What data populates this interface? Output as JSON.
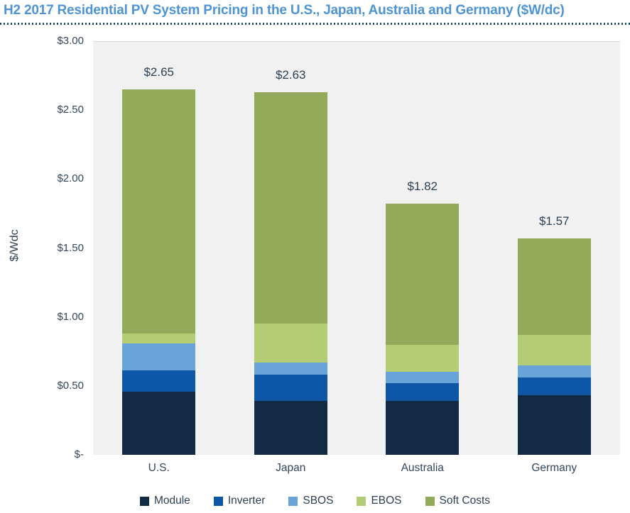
{
  "title": "H2 2017 Residential PV System Pricing in the U.S., Japan, Australia and Germany ($W/dc)",
  "colors": {
    "title_text": "#4E94D4",
    "divider_dots": "#1E4F63",
    "axis_text": "#33475C",
    "label_text": "#2E4154",
    "plot_background": "#F1F1F1",
    "top_gridline": "#DBDBDB",
    "page_background": "#FFFFFF"
  },
  "chart_data": {
    "type": "bar",
    "stacked": true,
    "title": "H2 2017 Residential PV System Pricing in the U.S., Japan, Australia and Germany ($W/dc)",
    "xlabel": "",
    "ylabel": "$/Wdc",
    "ylim": [
      0,
      3.0
    ],
    "grid": false,
    "legend_position": "bottom",
    "categories": [
      "U.S.",
      "Japan",
      "Australia",
      "Germany"
    ],
    "series": [
      {
        "name": "Module",
        "color": "#132A44",
        "values": [
          0.46,
          0.39,
          0.39,
          0.43
        ]
      },
      {
        "name": "Inverter",
        "color": "#0E57A6",
        "values": [
          0.15,
          0.19,
          0.13,
          0.13
        ]
      },
      {
        "name": "SBOS",
        "color": "#68A3D9",
        "values": [
          0.2,
          0.09,
          0.08,
          0.09
        ]
      },
      {
        "name": "EBOS",
        "color": "#B2CD73",
        "values": [
          0.07,
          0.28,
          0.2,
          0.22
        ]
      },
      {
        "name": "Soft Costs",
        "color": "#94AA5B",
        "values": [
          1.77,
          1.68,
          1.02,
          0.7
        ]
      }
    ],
    "totals": [
      2.65,
      2.63,
      1.82,
      1.57
    ],
    "total_labels": [
      "$2.65",
      "$2.63",
      "$1.82",
      "$1.57"
    ],
    "y_ticks": [
      {
        "value": 3.0,
        "label": "$3.00"
      },
      {
        "value": 2.5,
        "label": "$2.50"
      },
      {
        "value": 2.0,
        "label": "$2.00"
      },
      {
        "value": 1.5,
        "label": "$1.50"
      },
      {
        "value": 1.0,
        "label": "$1.00"
      },
      {
        "value": 0.5,
        "label": "$0.50"
      },
      {
        "value": 0.0,
        "label": "$-"
      }
    ]
  }
}
